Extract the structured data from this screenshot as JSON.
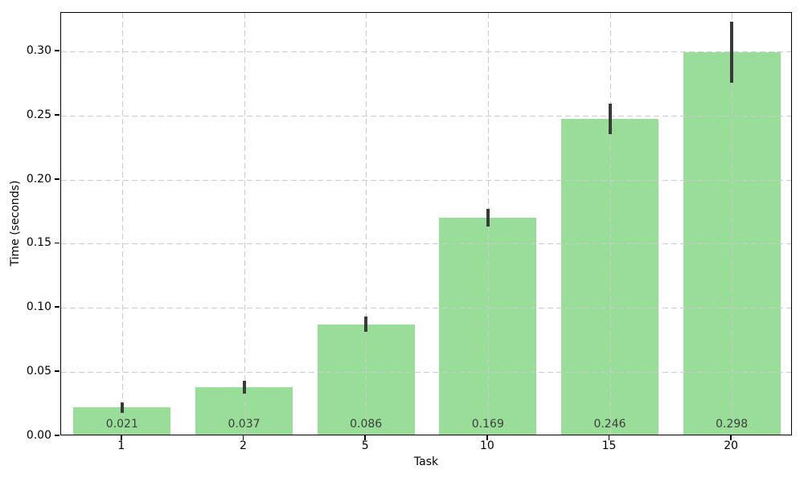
{
  "chart_data": {
    "type": "bar",
    "title": "",
    "xlabel": "Task",
    "ylabel": "Time (seconds)",
    "categories": [
      "1",
      "2",
      "5",
      "10",
      "15",
      "20"
    ],
    "values": [
      0.021,
      0.037,
      0.086,
      0.169,
      0.246,
      0.298
    ],
    "bar_labels": [
      "0.021",
      "0.037",
      "0.086",
      "0.169",
      "0.246",
      "0.298"
    ],
    "error_bars": [
      0.004,
      0.005,
      0.006,
      0.007,
      0.012,
      0.024
    ],
    "yticks": [
      0.0,
      0.05,
      0.1,
      0.15,
      0.2,
      0.25,
      0.3
    ],
    "ytick_labels": [
      "0.00",
      "0.05",
      "0.10",
      "0.15",
      "0.20",
      "0.25",
      "0.30"
    ],
    "ylim": [
      0,
      0.33
    ],
    "bar_width_fraction": 0.8,
    "grid": true,
    "grid_style": "dashed",
    "legend": "none",
    "colors": {
      "bar": "#98de98",
      "error_bar": "#3a3a3a",
      "grid": "#cbcbcb",
      "spine": "#000000",
      "tick_label": "#000000",
      "value_label": "#3d3d3d",
      "background": "#ffffff"
    }
  }
}
